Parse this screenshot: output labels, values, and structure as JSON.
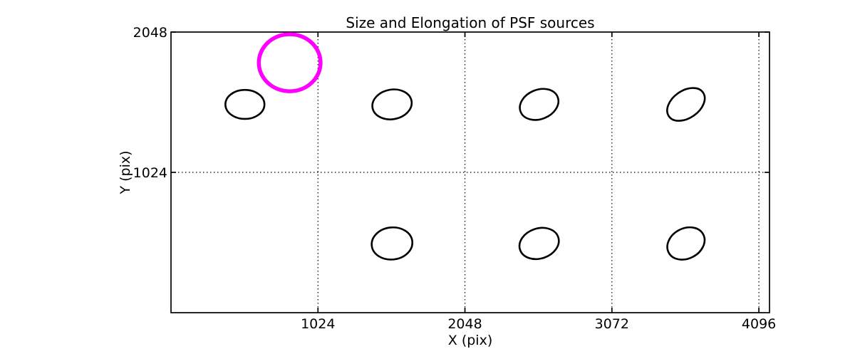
{
  "figure": {
    "background": "#ffffff",
    "axes_color": "#000000"
  },
  "chart_data": {
    "type": "scatter",
    "title": "Size and Elongation of PSF sources",
    "xlabel": "X (pix)",
    "ylabel": "Y (pix)",
    "xlim": [
      0,
      4170
    ],
    "ylim": [
      0,
      2048
    ],
    "xticks": [
      1024,
      2048,
      3072,
      4096
    ],
    "yticks": [
      1024,
      2048
    ],
    "grid": {
      "on": true,
      "style": "dotted",
      "color": "#000000"
    },
    "legend": "none",
    "series": [
      {
        "name": "psf-source-ellipses",
        "color": "#000000",
        "stroke_width": 2.6,
        "points": [
          {
            "x": 515,
            "y": 1520,
            "a": 136,
            "b": 106,
            "angle": 0
          },
          {
            "x": 1540,
            "y": 1520,
            "a": 138,
            "b": 108,
            "angle": 10
          },
          {
            "x": 2565,
            "y": 1520,
            "a": 139,
            "b": 107,
            "angle": 22
          },
          {
            "x": 3588,
            "y": 1520,
            "a": 145,
            "b": 100,
            "angle": 35
          },
          {
            "x": 1540,
            "y": 505,
            "a": 142,
            "b": 117,
            "angle": 6
          },
          {
            "x": 2565,
            "y": 505,
            "a": 140,
            "b": 110,
            "angle": 18
          },
          {
            "x": 3588,
            "y": 505,
            "a": 136,
            "b": 110,
            "angle": 28
          }
        ]
      },
      {
        "name": "highlighted-source-circle",
        "color": "#FF00FF",
        "stroke_width": 5.5,
        "points": [
          {
            "x": 827,
            "y": 1824,
            "a": 215,
            "b": 208,
            "angle": 0
          }
        ]
      }
    ]
  }
}
